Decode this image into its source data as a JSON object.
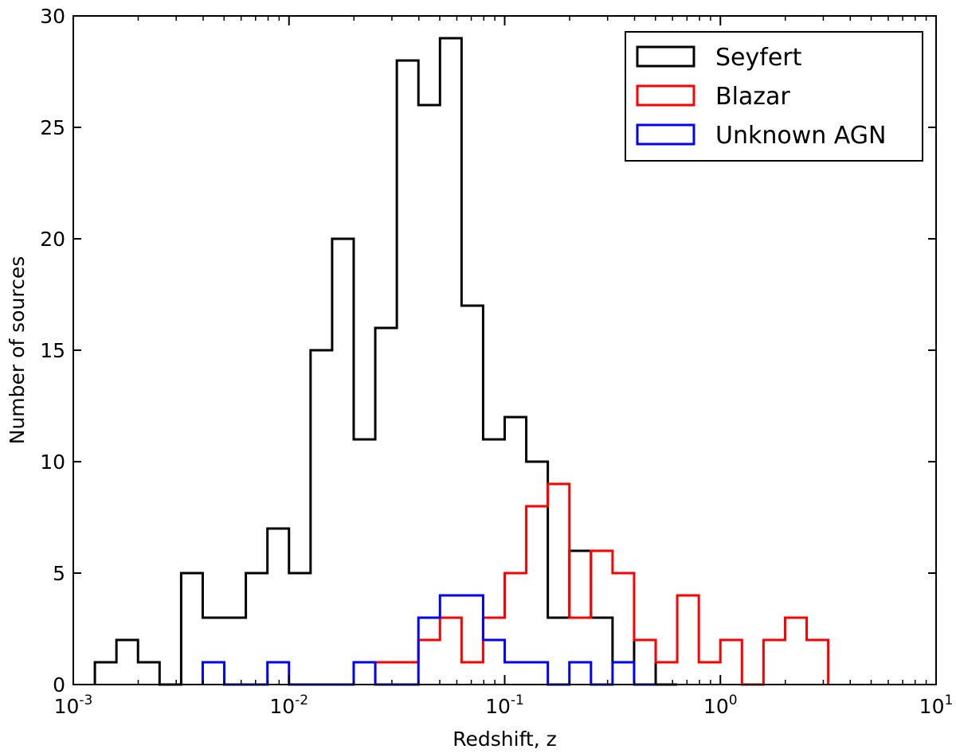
{
  "chart_data": {
    "type": "histogram",
    "title": "",
    "xlabel": "Redshift, z",
    "ylabel": "Number of sources",
    "xscale": "log",
    "xlim": [
      0.001,
      10
    ],
    "ylim": [
      0,
      30
    ],
    "grid": false,
    "legend_position": "top-right",
    "x_ticks": [
      {
        "value": 0.001,
        "base": "10",
        "exp": "-3"
      },
      {
        "value": 0.01,
        "base": "10",
        "exp": "-2"
      },
      {
        "value": 0.1,
        "base": "10",
        "exp": "-1"
      },
      {
        "value": 1,
        "base": "10",
        "exp": "0"
      },
      {
        "value": 10,
        "base": "10",
        "exp": "1"
      }
    ],
    "y_ticks": [
      0,
      5,
      10,
      15,
      20,
      25,
      30
    ],
    "log10_bin_width": 0.1,
    "series": [
      {
        "name": "Seyfert",
        "color": "#000000",
        "log10_z_start": -2.9,
        "counts": [
          1,
          2,
          1,
          0,
          5,
          3,
          3,
          5,
          7,
          5,
          15,
          20,
          11,
          16,
          28,
          26,
          29,
          17,
          11,
          12,
          10,
          3,
          6,
          3,
          1,
          2,
          0
        ]
      },
      {
        "name": "Blazar",
        "color": "#ff0000",
        "log10_z_start": -1.6,
        "counts": [
          1,
          1,
          2,
          3,
          1,
          3,
          5,
          8,
          9,
          3,
          6,
          5,
          2,
          1,
          4,
          1,
          2,
          0,
          2,
          3,
          2
        ]
      },
      {
        "name": "Unknown AGN",
        "color": "#0000ff",
        "log10_z_start": -2.4,
        "counts": [
          1,
          0,
          0,
          1,
          0,
          0,
          0,
          1,
          0,
          0,
          3,
          4,
          4,
          2,
          1,
          1,
          0,
          1,
          0,
          1,
          0
        ]
      }
    ]
  }
}
